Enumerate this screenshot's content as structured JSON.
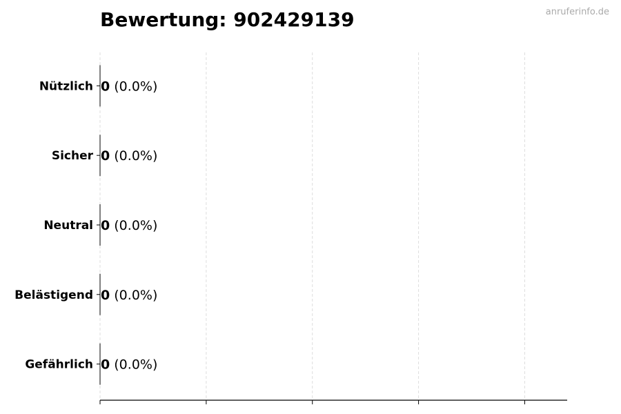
{
  "chart_data": {
    "type": "bar",
    "orientation": "horizontal",
    "title": "Bewertung: 902429139",
    "watermark": "anruferinfo.de",
    "categories": [
      "Nützlich",
      "Sicher",
      "Neutral",
      "Belästigend",
      "Gefährlich"
    ],
    "values": [
      0,
      0,
      0,
      0,
      0
    ],
    "value_labels": [
      "0",
      "0",
      "0",
      "0",
      "0"
    ],
    "percent_labels": [
      "(0.0%)",
      "(0.0%)",
      "(0.0%)",
      "(0.0%)",
      "(0.0%)"
    ],
    "xlim": [
      0,
      4.4
    ],
    "xticks": [
      0,
      1,
      2,
      3,
      4
    ],
    "xtick_labels_shown": false,
    "grid": "vertical dashed",
    "colors": {
      "grid": "#dddddd",
      "axis": "#000000",
      "bar_edge": "#000000",
      "watermark": "#aaaaaa"
    }
  }
}
